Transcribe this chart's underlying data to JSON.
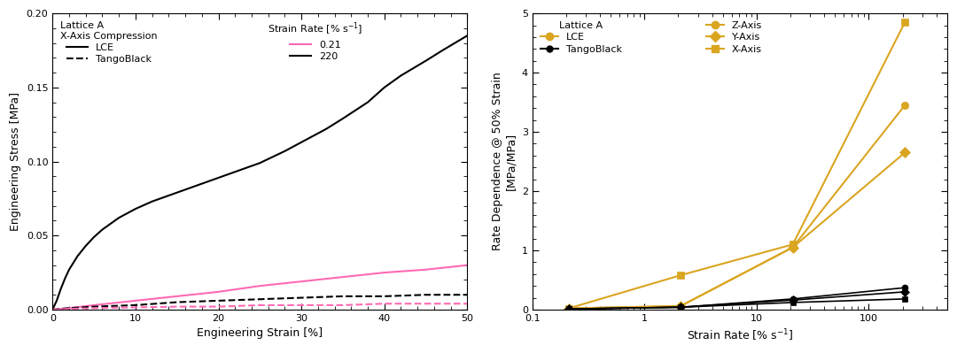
{
  "left_plot": {
    "xlabel": "Engineering Strain [%]",
    "ylabel": "Engineering Stress [MPa]",
    "xlim": [
      0,
      50
    ],
    "ylim": [
      0,
      0.2
    ],
    "yticks": [
      0.0,
      0.05,
      0.1,
      0.15,
      0.2
    ],
    "xticks": [
      0,
      10,
      20,
      30,
      40,
      50
    ],
    "curves": {
      "LCE_high": {
        "color": "#000000",
        "linestyle": "solid",
        "linewidth": 1.5,
        "x": [
          0,
          0.5,
          1,
          1.5,
          2,
          3,
          4,
          5,
          6,
          7,
          8,
          9,
          10,
          12,
          15,
          18,
          20,
          23,
          25,
          28,
          30,
          33,
          35,
          38,
          40,
          42,
          45,
          47,
          50
        ],
        "y": [
          0,
          0.006,
          0.014,
          0.021,
          0.027,
          0.036,
          0.043,
          0.049,
          0.054,
          0.058,
          0.062,
          0.065,
          0.068,
          0.073,
          0.079,
          0.085,
          0.089,
          0.095,
          0.099,
          0.107,
          0.113,
          0.122,
          0.129,
          0.14,
          0.15,
          0.158,
          0.168,
          0.175,
          0.185
        ]
      },
      "LCE_low": {
        "color": "#ff69b4",
        "linestyle": "solid",
        "linewidth": 1.5,
        "x": [
          0,
          2,
          5,
          10,
          15,
          20,
          25,
          30,
          35,
          40,
          45,
          50
        ],
        "y": [
          0,
          0.001,
          0.003,
          0.006,
          0.009,
          0.012,
          0.016,
          0.019,
          0.022,
          0.025,
          0.027,
          0.03
        ]
      },
      "TB_high": {
        "color": "#000000",
        "linestyle": "dashed",
        "linewidth": 1.5,
        "x": [
          0,
          2,
          5,
          10,
          15,
          20,
          25,
          30,
          35,
          40,
          45,
          50
        ],
        "y": [
          0,
          0.001,
          0.002,
          0.003,
          0.005,
          0.006,
          0.007,
          0.008,
          0.009,
          0.009,
          0.01,
          0.01
        ]
      },
      "TB_low": {
        "color": "#ff69b4",
        "linestyle": "dashed",
        "linewidth": 1.5,
        "x": [
          0,
          2,
          5,
          10,
          15,
          20,
          25,
          30,
          35,
          40,
          45,
          50
        ],
        "y": [
          0,
          0.0005,
          0.001,
          0.0015,
          0.002,
          0.002,
          0.003,
          0.003,
          0.003,
          0.004,
          0.004,
          0.004
        ]
      }
    },
    "legend1_title": "Lattice A\nX-Axis Compression",
    "legend2_title": "Strain Rate [% s$^{-1}$]"
  },
  "right_plot": {
    "xlabel": "Strain Rate [% s$^{-1}$]",
    "ylabel": "Rate Dependence @ 50% Strain\n[MPa/MPa]",
    "xlim": [
      0.1,
      500
    ],
    "ylim": [
      0,
      5
    ],
    "yticks": [
      0,
      1,
      2,
      3,
      4,
      5
    ],
    "curves": {
      "LCE_Z": {
        "x": [
          0.21,
          2.1,
          21,
          210
        ],
        "y": [
          0.02,
          0.06,
          1.05,
          3.45
        ],
        "color": "#DAA520",
        "marker": "o",
        "markersize": 6,
        "linewidth": 1.5
      },
      "LCE_Y": {
        "x": [
          0.21,
          2.1,
          21,
          210
        ],
        "y": [
          0.02,
          0.06,
          1.05,
          2.65
        ],
        "color": "#DAA520",
        "marker": "D",
        "markersize": 6,
        "linewidth": 1.5
      },
      "LCE_X": {
        "x": [
          0.21,
          2.1,
          21,
          210
        ],
        "y": [
          0.02,
          0.58,
          1.1,
          4.85
        ],
        "color": "#DAA520",
        "marker": "s",
        "markersize": 6,
        "linewidth": 1.5
      },
      "TB_Z": {
        "x": [
          0.21,
          2.1,
          21,
          210
        ],
        "y": [
          0.01,
          0.04,
          0.18,
          0.37
        ],
        "color": "#000000",
        "marker": "o",
        "markersize": 5,
        "linewidth": 1.2
      },
      "TB_Y": {
        "x": [
          0.21,
          2.1,
          21,
          210
        ],
        "y": [
          0.01,
          0.04,
          0.16,
          0.3
        ],
        "color": "#000000",
        "marker": "D",
        "markersize": 5,
        "linewidth": 1.2
      },
      "TB_X": {
        "x": [
          0.21,
          2.1,
          21,
          210
        ],
        "y": [
          0.01,
          0.04,
          0.12,
          0.18
        ],
        "color": "#000000",
        "marker": "s",
        "markersize": 5,
        "linewidth": 1.2
      }
    }
  },
  "background_color": "#ffffff",
  "font_size": 9,
  "tick_labelsize": 8
}
